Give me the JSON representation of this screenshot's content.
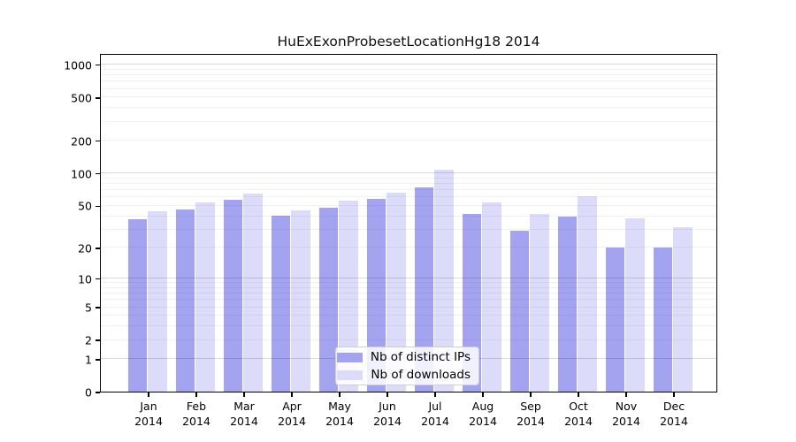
{
  "title": "HuExExonProbesetLocationHg18 2014",
  "colors": {
    "ips_bar": "#a3a3f0",
    "downloads_bar": "#dcdcfa",
    "axis": "#000000",
    "major_grid": "#dbdbdb",
    "minor_grid": "#f1f1f1",
    "legend_border": "#cfcfcf"
  },
  "chart_data": {
    "type": "bar",
    "title": "HuExExonProbesetLocationHg18 2014",
    "scale": "log10(x+1)",
    "grid": true,
    "legend_position": "bottom-center",
    "categories": [
      "Jan",
      "Feb",
      "Mar",
      "Apr",
      "May",
      "Jun",
      "Jul",
      "Aug",
      "Sep",
      "Oct",
      "Nov",
      "Dec"
    ],
    "x_tick_second_line": "2014",
    "series": [
      {
        "name": "Nb of distinct IPs",
        "color": "#a3a3f0",
        "values": [
          37,
          46,
          56,
          40,
          48,
          57,
          74,
          42,
          29,
          39,
          20,
          20
        ]
      },
      {
        "name": "Nb of downloads",
        "color": "#dcdcfa",
        "values": [
          44,
          53,
          64,
          45,
          55,
          66,
          108,
          53,
          42,
          61,
          38,
          31
        ]
      }
    ],
    "yticks_labeled": [
      0,
      1,
      2,
      5,
      10,
      20,
      50,
      100,
      200,
      500,
      1000
    ],
    "ymajor_gridlines": [
      1,
      10,
      100,
      1000
    ],
    "yminor_gridlines": [
      2,
      3,
      4,
      5,
      6,
      7,
      8,
      9,
      20,
      30,
      40,
      50,
      60,
      70,
      80,
      90,
      200,
      300,
      400,
      500,
      600,
      700,
      800,
      900
    ],
    "ylim": [
      0,
      1270
    ],
    "xlabel": "",
    "ylabel": ""
  }
}
